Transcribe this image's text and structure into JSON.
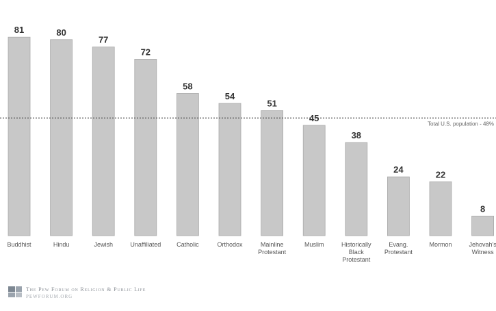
{
  "chart_data": {
    "type": "bar",
    "categories": [
      [
        "Buddhist"
      ],
      [
        "Hindu"
      ],
      [
        "Jewish"
      ],
      [
        "Unaffiliated"
      ],
      [
        "Catholic"
      ],
      [
        "Orthodox"
      ],
      [
        "Mainline",
        "Protestant"
      ],
      [
        "Muslim"
      ],
      [
        "Historically",
        "Black",
        "Protestant"
      ],
      [
        "Evang.",
        "Protestant"
      ],
      [
        "Mormon"
      ],
      [
        "Jehovah's",
        "Witness"
      ]
    ],
    "values": [
      81,
      80,
      77,
      72,
      58,
      54,
      51,
      45,
      38,
      24,
      22,
      8
    ],
    "reference_line": {
      "value": 48,
      "label": "Total U.S. population - 48%"
    },
    "ylim": [
      0,
      90
    ],
    "bar_color": "#c8c8c8",
    "bar_edge_color": "#a9a9a9",
    "grid": false,
    "legend": "none"
  },
  "footer": {
    "org_line1": "The Pew Forum on Religion & Public Life",
    "org_line2": "pewforum.org"
  }
}
